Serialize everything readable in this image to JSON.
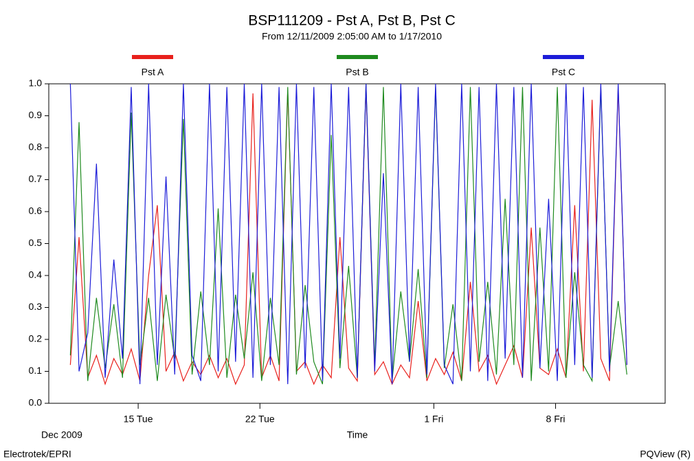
{
  "chart_data": {
    "type": "line",
    "title": "BSP111209 - Pst A, Pst B, Pst C",
    "subtitle": "From 12/11/2009 2:05:00 AM to 1/17/2010",
    "x_label": "Time",
    "x_period_label": "Dec 2009",
    "footer_left": "Electrotek/EPRI",
    "footer_right": "PQView (R)",
    "x": [
      11.1,
      11.6,
      12.1,
      12.6,
      13.1,
      13.6,
      14.1,
      14.6,
      15.1,
      15.6,
      16.1,
      16.6,
      17.1,
      17.6,
      18.1,
      18.6,
      19.1,
      19.6,
      20.1,
      20.6,
      21.1,
      21.6,
      22.1,
      22.6,
      23.1,
      23.6,
      24.1,
      24.6,
      25.1,
      25.6,
      26.1,
      26.6,
      27.1,
      27.6,
      28.1,
      28.6,
      29.1,
      29.6,
      30.1,
      30.6,
      31.1,
      31.6,
      32.1,
      32.6,
      33.1,
      33.6,
      34.1,
      34.6,
      35.1,
      35.6,
      36.1,
      36.6,
      37.1,
      37.6,
      38.1,
      38.6,
      39.1,
      39.6,
      40.1,
      40.6,
      41.1,
      41.6,
      42.1,
      42.6,
      43.1
    ],
    "series": [
      {
        "name": "Pst A",
        "color": "#e8201c",
        "values": [
          0.12,
          0.52,
          0.08,
          0.15,
          0.06,
          0.14,
          0.09,
          0.17,
          0.07,
          0.4,
          0.62,
          0.1,
          0.16,
          0.07,
          0.13,
          0.09,
          0.15,
          0.08,
          0.14,
          0.06,
          0.12,
          0.97,
          0.08,
          0.15,
          0.07,
          0.98,
          0.1,
          0.13,
          0.06,
          0.12,
          0.08,
          0.52,
          0.11,
          0.07,
          0.99,
          0.09,
          0.13,
          0.06,
          0.12,
          0.08,
          0.32,
          0.07,
          0.14,
          0.09,
          0.16,
          0.07,
          0.38,
          0.1,
          0.15,
          0.06,
          0.12,
          0.18,
          0.08,
          0.55,
          0.11,
          0.09,
          0.17,
          0.08,
          0.62,
          0.1,
          0.95,
          0.14,
          0.07,
          0.99,
          0.12
        ]
      },
      {
        "name": "Pst B",
        "color": "#1e8a1e",
        "values": [
          0.15,
          0.88,
          0.07,
          0.33,
          0.11,
          0.31,
          0.08,
          0.91,
          0.12,
          0.33,
          0.07,
          0.34,
          0.14,
          0.89,
          0.09,
          0.35,
          0.12,
          0.61,
          0.08,
          0.34,
          0.14,
          0.41,
          0.07,
          0.33,
          0.12,
          0.99,
          0.09,
          0.37,
          0.13,
          0.06,
          0.84,
          0.11,
          0.43,
          0.08,
          1.0,
          0.12,
          0.99,
          0.07,
          0.35,
          0.13,
          0.42,
          0.08,
          0.99,
          0.11,
          0.31,
          0.07,
          0.99,
          0.13,
          0.38,
          0.09,
          0.64,
          0.12,
          0.99,
          0.07,
          0.55,
          0.1,
          0.99,
          0.08,
          0.41,
          0.12,
          0.07,
          0.99,
          0.11,
          0.32,
          0.09
        ]
      },
      {
        "name": "Pst C",
        "color": "#1c1cd8",
        "values": [
          1.0,
          0.1,
          0.22,
          0.75,
          0.08,
          0.45,
          0.14,
          0.99,
          0.06,
          1.0,
          0.12,
          0.71,
          0.09,
          1.0,
          0.15,
          0.07,
          1.0,
          0.1,
          0.99,
          0.13,
          1.0,
          0.08,
          1.0,
          0.12,
          0.99,
          0.06,
          1.0,
          0.11,
          0.99,
          0.07,
          1.0,
          0.14,
          0.99,
          0.08,
          1.0,
          0.1,
          0.72,
          0.06,
          1.0,
          0.13,
          0.99,
          0.09,
          1.0,
          0.12,
          0.06,
          1.0,
          0.1,
          0.99,
          0.07,
          1.0,
          0.14,
          0.99,
          0.08,
          1.0,
          0.11,
          0.64,
          0.07,
          1.0,
          0.12,
          0.99,
          0.08,
          1.0,
          0.1,
          1.0,
          0.12
        ]
      }
    ],
    "xlim": [
      9.86,
      45.3
    ],
    "xticks": [
      {
        "value": 15,
        "label": "15 Tue"
      },
      {
        "value": 22,
        "label": "22 Tue"
      },
      {
        "value": 32,
        "label": "1 Fri"
      },
      {
        "value": 39,
        "label": "8 Fri"
      }
    ],
    "ylim": [
      0,
      1
    ],
    "yticks": [
      {
        "value": 0,
        "label": "0.0"
      },
      {
        "value": 0.1,
        "label": "0.1"
      },
      {
        "value": 0.2,
        "label": "0.2"
      },
      {
        "value": 0.3,
        "label": "0.3"
      },
      {
        "value": 0.4,
        "label": "0.4"
      },
      {
        "value": 0.5,
        "label": "0.5"
      },
      {
        "value": 0.6,
        "label": "0.6"
      },
      {
        "value": 0.7,
        "label": "0.7"
      },
      {
        "value": 0.8,
        "label": "0.8"
      },
      {
        "value": 0.9,
        "label": "0.9"
      },
      {
        "value": 1,
        "label": "1.0"
      }
    ],
    "grid": false
  }
}
